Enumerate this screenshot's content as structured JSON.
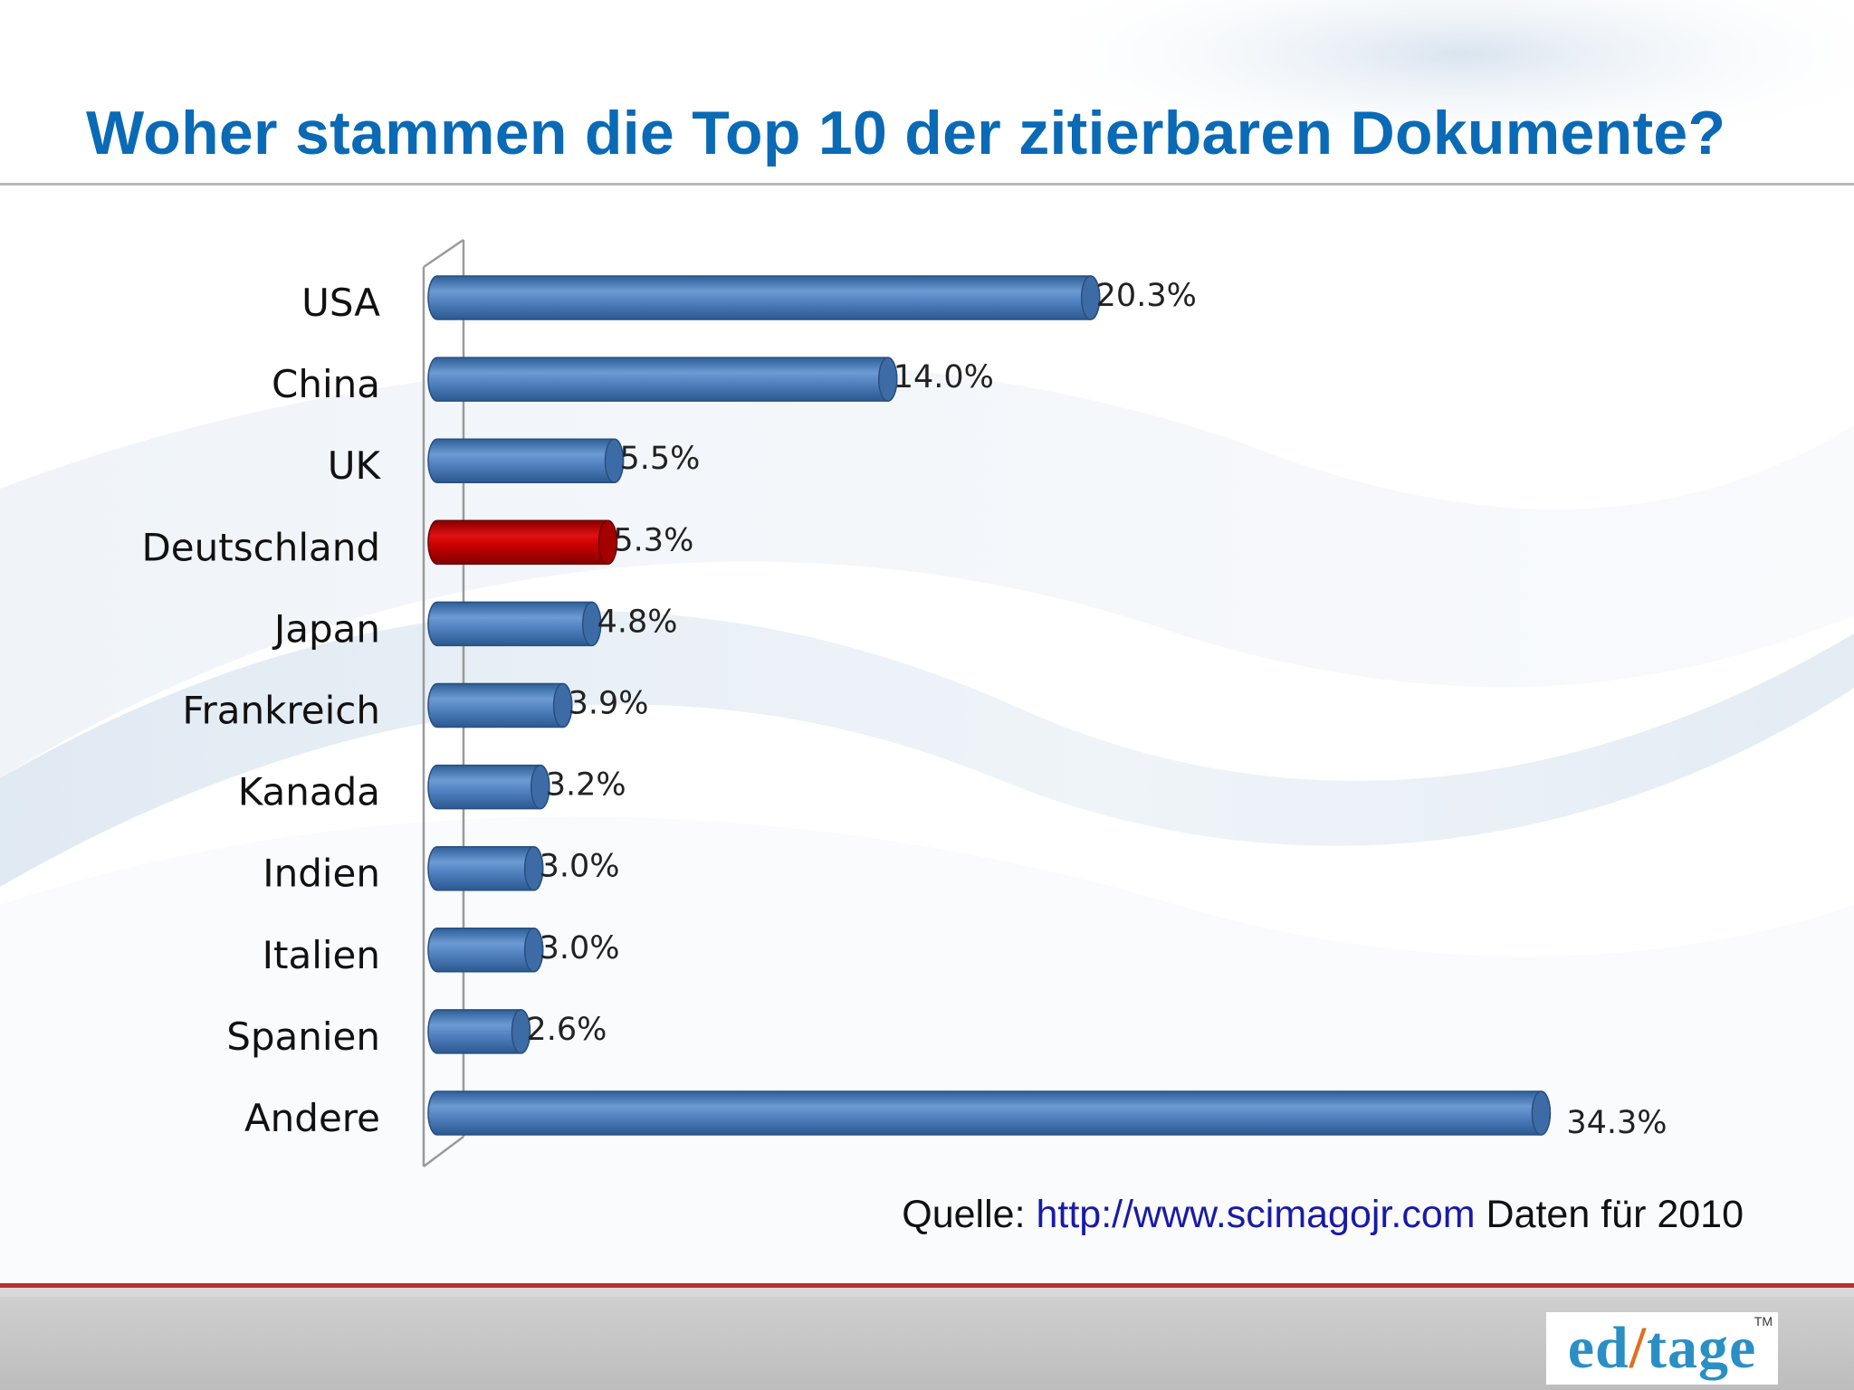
{
  "slide": {
    "title": "Woher stammen die Top 10 der zitierbaren Dokumente?",
    "source_prefix": "Quelle:",
    "source_link": "http://www.scimagojr.com",
    "source_suffix": "Daten für 2010",
    "logo": {
      "prefix": "ed",
      "slash": "/",
      "suffix": "tage",
      "tm": "TM"
    }
  },
  "colors": {
    "title": "#0a6ab5",
    "bar": "#4f81bd",
    "highlight": "#c00000",
    "link": "#1a1aa6"
  },
  "chart_data": {
    "type": "bar",
    "orientation": "horizontal",
    "title": "",
    "xlabel": "",
    "ylabel": "",
    "grid": false,
    "highlight": "Deutschland",
    "xlim": [
      0,
      36
    ],
    "categories": [
      "USA",
      "China",
      "UK",
      "Deutschland",
      "Japan",
      "Frankreich",
      "Kanada",
      "Indien",
      "Italien",
      "Spanien",
      "Andere"
    ],
    "values": [
      20.3,
      14.0,
      5.5,
      5.3,
      4.8,
      3.9,
      3.2,
      3.0,
      3.0,
      2.6,
      34.3
    ],
    "labels": [
      "20.3%",
      "14.0%",
      "5.5%",
      "5.3%",
      "4.8%",
      "3.9%",
      "3.2%",
      "3.0%",
      "3.0%",
      "2.6%",
      "34.3%"
    ]
  }
}
